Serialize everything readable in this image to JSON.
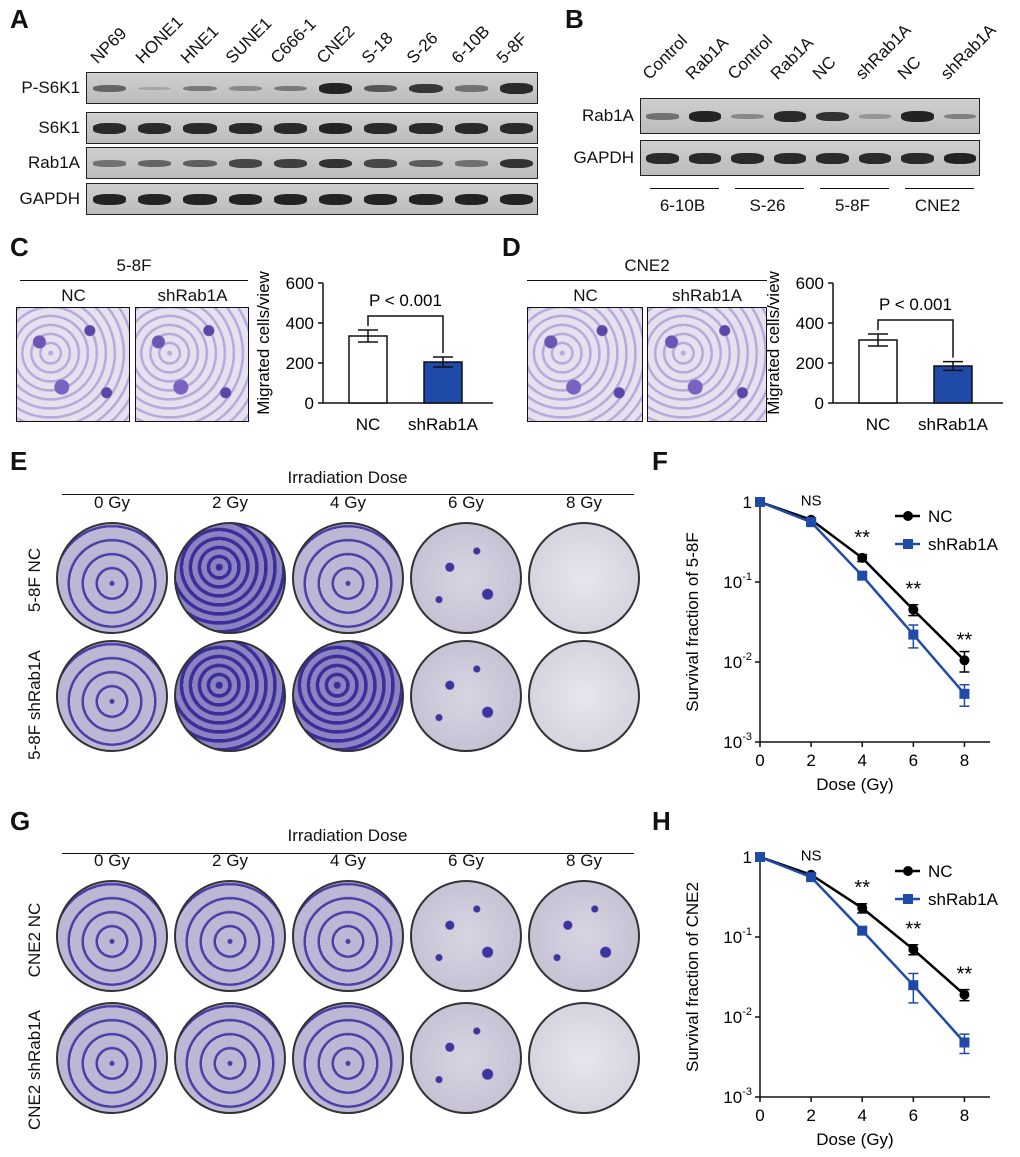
{
  "panels": {
    "A": {
      "letter": "A",
      "lanes": [
        "NP69",
        "HONE1",
        "HNE1",
        "SUNE1",
        "C666-1",
        "CNE2",
        "S-18",
        "S-26",
        "6-10B",
        "5-8F"
      ],
      "rows": [
        "P-S6K1",
        "S6K1",
        "Rab1A",
        "GAPDH"
      ]
    },
    "B": {
      "letter": "B",
      "lanes": [
        "Control",
        "Rab1A",
        "Control",
        "Rab1A",
        "NC",
        "shRab1A",
        "NC",
        "shRab1A"
      ],
      "rows": [
        "Rab1A",
        "GAPDH"
      ],
      "groups": [
        "6-10B",
        "S-26",
        "5-8F",
        "CNE2"
      ]
    },
    "C": {
      "letter": "C",
      "cell_line": "5-8F",
      "image_labels": [
        "NC",
        "shRab1A"
      ],
      "pvalue": "P < 0.001"
    },
    "D": {
      "letter": "D",
      "cell_line": "CNE2",
      "image_labels": [
        "NC",
        "shRab1A"
      ],
      "pvalue": "P < 0.001"
    },
    "E": {
      "letter": "E",
      "title": "Irradiation Dose",
      "doses": [
        "0 Gy",
        "2 Gy",
        "4 Gy",
        "6 Gy",
        "8 Gy"
      ],
      "rows": [
        "5-8F NC",
        "5-8F shRab1A"
      ]
    },
    "F": {
      "letter": "F"
    },
    "G": {
      "letter": "G",
      "title": "Irradiation Dose",
      "doses": [
        "0 Gy",
        "2 Gy",
        "4 Gy",
        "6 Gy",
        "8 Gy"
      ],
      "rows": [
        "CNE2 NC",
        "CNE2 shRab1A"
      ]
    },
    "H": {
      "letter": "H"
    }
  },
  "chart_data": [
    {
      "panel": "C",
      "type": "bar",
      "categories": [
        "NC",
        "shRab1A"
      ],
      "values": [
        335,
        205
      ],
      "errors": [
        30,
        25
      ],
      "ylabel": "Migrated cells/view",
      "ylim": [
        0,
        600
      ],
      "yticks": [
        0,
        200,
        400,
        600
      ],
      "annotation": "P < 0.001",
      "colors": [
        "#ffffff",
        "#1f4aa8"
      ]
    },
    {
      "panel": "D",
      "type": "bar",
      "categories": [
        "NC",
        "shRab1A"
      ],
      "values": [
        315,
        185
      ],
      "errors": [
        30,
        22
      ],
      "ylabel": "Migrated cells/view",
      "ylim": [
        0,
        600
      ],
      "yticks": [
        0,
        200,
        400,
        600
      ],
      "annotation": "P < 0.001",
      "colors": [
        "#ffffff",
        "#1f4aa8"
      ]
    },
    {
      "panel": "F",
      "type": "line",
      "xlabel": "Dose (Gy)",
      "ylabel": "Survival fraction of 5-8F",
      "xlim": [
        0,
        9
      ],
      "ylim": [
        0.001,
        1
      ],
      "yscale": "log",
      "xticks": [
        0,
        2,
        4,
        6,
        8
      ],
      "yticks": [
        "1",
        "10-1",
        "10-2",
        "10-3"
      ],
      "legend_position": "top-right",
      "significance": [
        "NS",
        "**",
        "**",
        "**"
      ],
      "series": [
        {
          "name": "NC",
          "color": "#000000",
          "marker": "circle",
          "x": [
            0,
            2,
            4,
            6,
            8
          ],
          "y": [
            1,
            0.6,
            0.2,
            0.045,
            0.0105
          ],
          "err": [
            0,
            0.03,
            0.02,
            0.007,
            0.003
          ]
        },
        {
          "name": "shRab1A",
          "color": "#1f4aa8",
          "marker": "square",
          "x": [
            0,
            2,
            4,
            6,
            8
          ],
          "y": [
            1,
            0.56,
            0.12,
            0.022,
            0.004
          ],
          "err": [
            0,
            0.03,
            0.01,
            0.007,
            0.0012
          ]
        }
      ]
    },
    {
      "panel": "H",
      "type": "line",
      "xlabel": "Dose (Gy)",
      "ylabel": "Survival fraction of CNE2",
      "xlim": [
        0,
        9
      ],
      "ylim": [
        0.001,
        1
      ],
      "yscale": "log",
      "xticks": [
        0,
        2,
        4,
        6,
        8
      ],
      "yticks": [
        "1",
        "10-1",
        "10-2",
        "10-3"
      ],
      "legend_position": "top-right",
      "significance": [
        "NS",
        "**",
        "**",
        "**"
      ],
      "series": [
        {
          "name": "NC",
          "color": "#000000",
          "marker": "circle",
          "x": [
            0,
            2,
            4,
            6,
            8
          ],
          "y": [
            1,
            0.6,
            0.23,
            0.07,
            0.019
          ],
          "err": [
            0,
            0.03,
            0.03,
            0.01,
            0.003
          ]
        },
        {
          "name": "shRab1A",
          "color": "#1f4aa8",
          "marker": "square",
          "x": [
            0,
            2,
            4,
            6,
            8
          ],
          "y": [
            1,
            0.56,
            0.12,
            0.025,
            0.0048
          ],
          "err": [
            0,
            0.03,
            0.01,
            0.01,
            0.0013
          ]
        }
      ]
    }
  ]
}
